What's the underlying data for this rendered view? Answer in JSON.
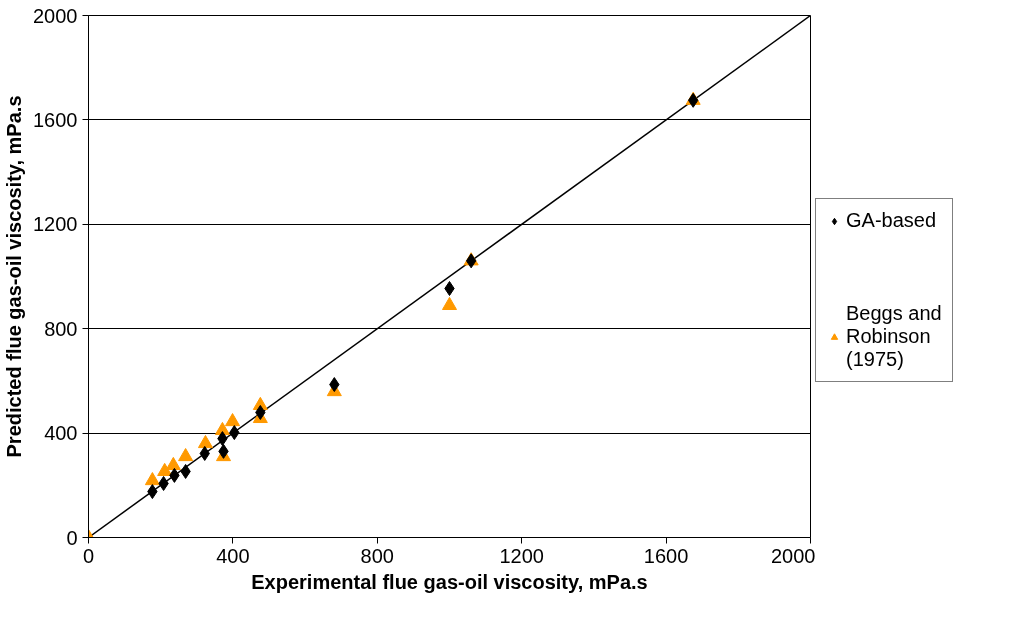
{
  "chart_data": {
    "type": "scatter",
    "xlabel": "Experimental flue gas-oil viscosity, mPa.s",
    "ylabel": "Predicted flue gas-oil viscosity, mPa.s",
    "xlim": [
      0,
      2000
    ],
    "ylim": [
      0,
      2000
    ],
    "xticks": [
      0,
      400,
      800,
      1200,
      1600,
      2000
    ],
    "yticks": [
      0,
      400,
      800,
      1200,
      1600,
      2000
    ],
    "grid": "y",
    "legend": "right",
    "series": [
      {
        "name": "GA-based",
        "color": "#000000",
        "marker": "diamond",
        "x": [
          177,
          208,
          238,
          269,
          322,
          374,
          371,
          404,
          476,
          681,
          1000,
          1060,
          1675
        ],
        "values": [
          176,
          207,
          238,
          253,
          322,
          330,
          379,
          402,
          479,
          586,
          954,
          1060,
          1675
        ]
      },
      {
        "name": "Beggs and Robinson (1975)",
        "color": "#ff9900",
        "marker": "triangle",
        "x": [
          0,
          177,
          211,
          235,
          269,
          324,
          374,
          371,
          399,
          476,
          476,
          681,
          1000,
          1060,
          1675
        ],
        "values": [
          0,
          218,
          253,
          276,
          310,
          360,
          310,
          410,
          444,
          506,
          456,
          559,
          889,
          1060,
          1675
        ]
      },
      {
        "type": "line",
        "color": "#000000",
        "x": [
          0,
          2000
        ],
        "values": [
          0,
          2000
        ]
      }
    ]
  }
}
